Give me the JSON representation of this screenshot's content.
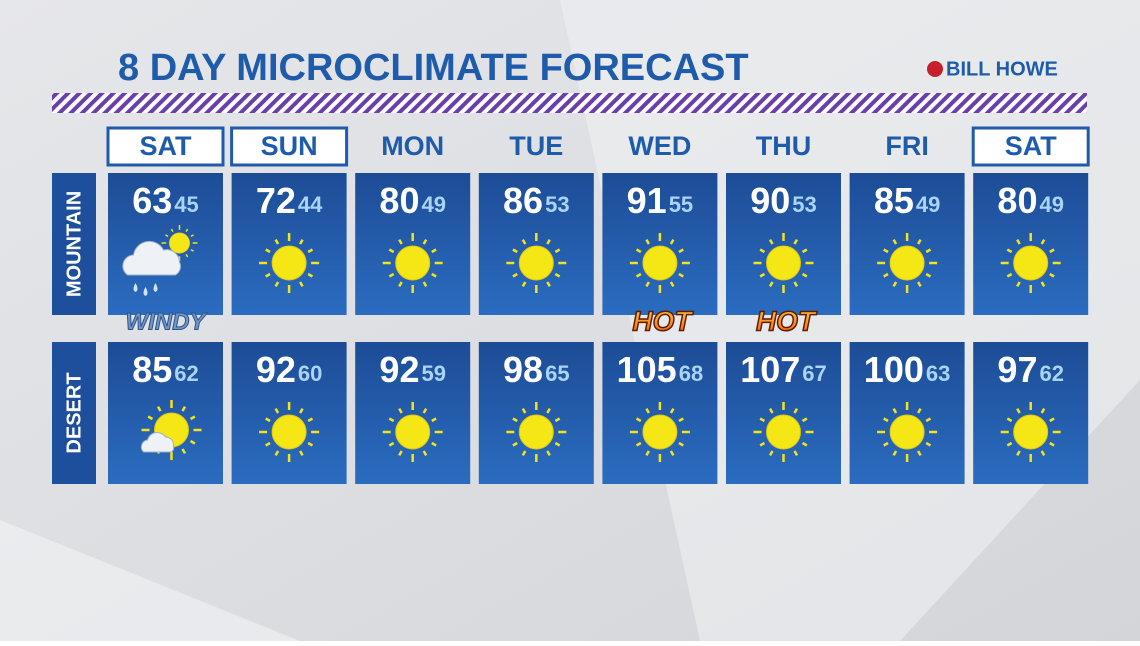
{
  "header": {
    "title": "8 DAY MICROCLIMATE FORECAST",
    "logo": "BILL HOWE"
  },
  "days": [
    {
      "label": "SAT",
      "boxed": true
    },
    {
      "label": "SUN",
      "boxed": true
    },
    {
      "label": "MON"
    },
    {
      "label": "TUE"
    },
    {
      "label": "WED"
    },
    {
      "label": "THU"
    },
    {
      "label": "FRI"
    },
    {
      "label": "SAT",
      "boxed": true
    }
  ],
  "rows": [
    {
      "name": "MOUNTAIN",
      "cells": [
        {
          "high": 63,
          "low": 45,
          "icon": "rain-sun",
          "note": "WINDY"
        },
        {
          "high": 72,
          "low": 44,
          "icon": "sun"
        },
        {
          "high": 80,
          "low": 49,
          "icon": "sun"
        },
        {
          "high": 86,
          "low": 53,
          "icon": "sun"
        },
        {
          "high": 91,
          "low": 55,
          "icon": "sun",
          "note": "HOT"
        },
        {
          "high": 90,
          "low": 53,
          "icon": "sun",
          "note": "HOT"
        },
        {
          "high": 85,
          "low": 49,
          "icon": "sun"
        },
        {
          "high": 80,
          "low": 49,
          "icon": "sun"
        }
      ]
    },
    {
      "name": "DESERT",
      "cells": [
        {
          "high": 85,
          "low": 62,
          "icon": "sun-cloud"
        },
        {
          "high": 92,
          "low": 60,
          "icon": "sun"
        },
        {
          "high": 92,
          "low": 59,
          "icon": "sun"
        },
        {
          "high": 98,
          "low": 65,
          "icon": "sun"
        },
        {
          "high": 105,
          "low": 68,
          "icon": "sun"
        },
        {
          "high": 107,
          "low": 67,
          "icon": "sun"
        },
        {
          "high": 100,
          "low": 63,
          "icon": "sun"
        },
        {
          "high": 97,
          "low": 62,
          "icon": "sun"
        }
      ]
    }
  ]
}
